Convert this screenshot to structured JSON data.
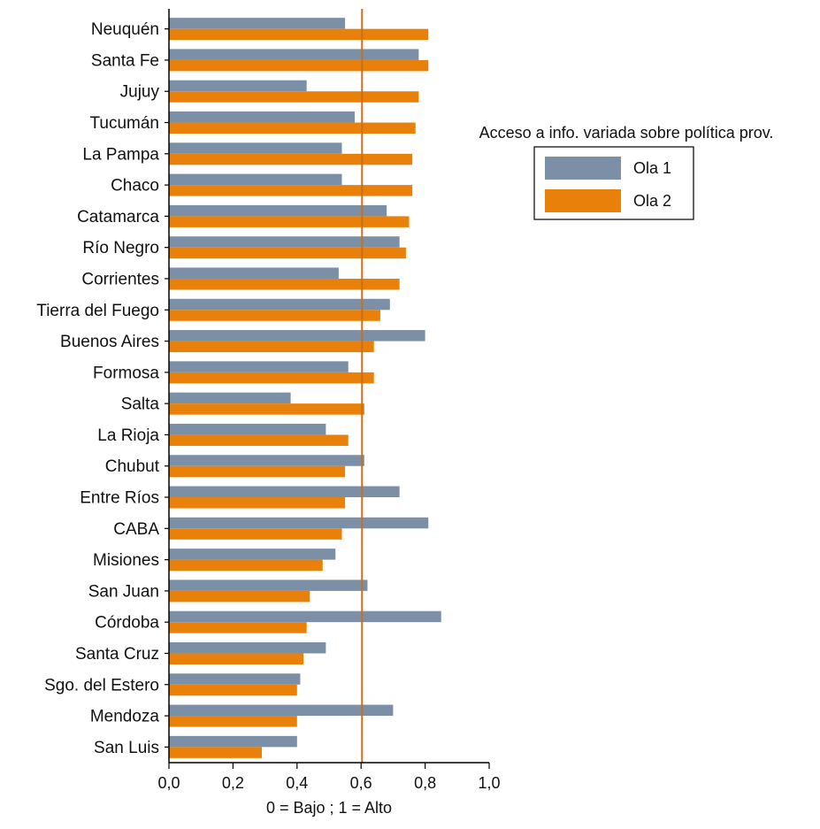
{
  "chart_data": {
    "type": "bar",
    "orientation": "horizontal",
    "title": "",
    "xlabel": "0 = Bajo ; 1 = Alto",
    "ylabel": "",
    "xlim": [
      0,
      1.0
    ],
    "x_ticks": [
      "0,0",
      "0,2",
      "0,4",
      "0,6",
      "0,8",
      "1,0"
    ],
    "x_tick_values": [
      0,
      0.2,
      0.4,
      0.6,
      0.8,
      1.0
    ],
    "reference_line": 0.603,
    "grid": false,
    "legend_position": "right",
    "legend_title": "Acceso a info. variada sobre política prov.",
    "categories": [
      "Neuquén",
      "Santa Fe",
      "Jujuy",
      "Tucumán",
      "La Pampa",
      "Chaco",
      "Catamarca",
      "Río Negro",
      "Corrientes",
      "Tierra del Fuego",
      "Buenos Aires",
      "Formosa",
      "Salta",
      "La Rioja",
      "Chubut",
      "Entre Ríos",
      "CABA",
      "Misiones",
      "San Juan",
      "Córdoba",
      "Santa Cruz",
      "Sgo. del Estero",
      "Mendoza",
      "San Luis"
    ],
    "series": [
      {
        "name": "Ola 1",
        "color": "#7b8fa6",
        "values": [
          0.55,
          0.78,
          0.43,
          0.58,
          0.54,
          0.54,
          0.68,
          0.72,
          0.53,
          0.69,
          0.8,
          0.56,
          0.38,
          0.49,
          0.61,
          0.72,
          0.81,
          0.52,
          0.62,
          0.85,
          0.49,
          0.41,
          0.7,
          0.4
        ]
      },
      {
        "name": "Ola 2",
        "color": "#e8800a",
        "values": [
          0.81,
          0.81,
          0.78,
          0.77,
          0.76,
          0.76,
          0.75,
          0.74,
          0.72,
          0.66,
          0.64,
          0.64,
          0.61,
          0.56,
          0.55,
          0.55,
          0.54,
          0.48,
          0.44,
          0.43,
          0.42,
          0.4,
          0.4,
          0.29
        ]
      }
    ],
    "reference_line_color": "#c8701c"
  }
}
